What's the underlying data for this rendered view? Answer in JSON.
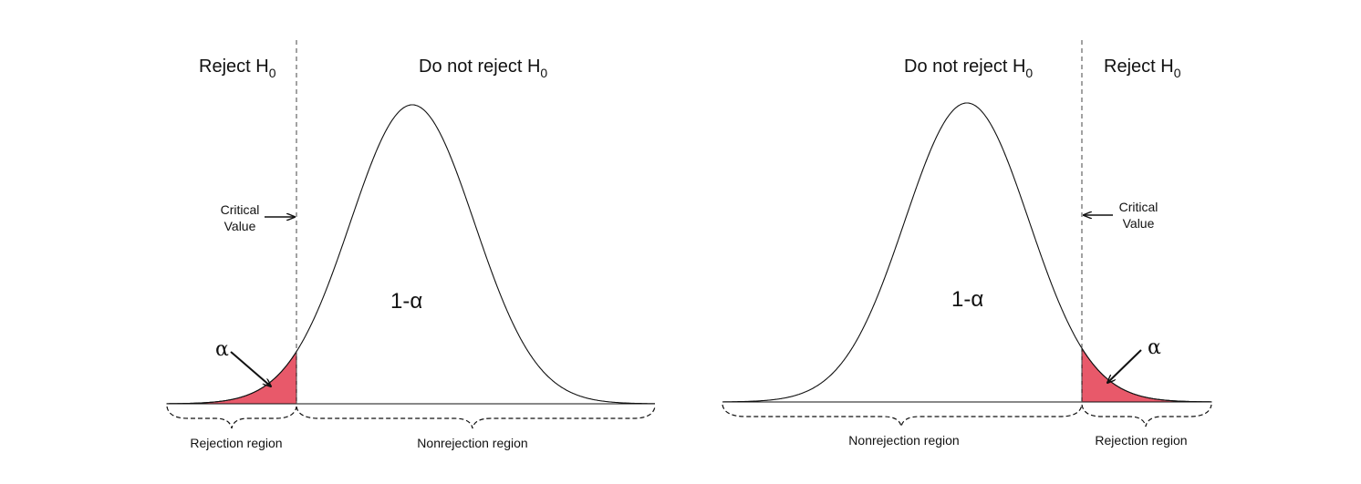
{
  "colors": {
    "rejection_fill": "#e8596a",
    "curve": "#111111"
  },
  "left_panel": {
    "tail": "left",
    "reject_label": "Reject H",
    "reject_sub": "0",
    "accept_label": "Do not reject H",
    "accept_sub": "0",
    "critical_line1": "Critical",
    "critical_line2": "Value",
    "center_label": "1-α",
    "alpha_label": "α",
    "rejection_region": "Rejection region",
    "nonrejection_region": "Nonrejection region"
  },
  "right_panel": {
    "tail": "right",
    "reject_label": "Reject H",
    "reject_sub": "0",
    "accept_label": "Do not reject H",
    "accept_sub": "0",
    "critical_line1": "Critical",
    "critical_line2": "Value",
    "center_label": "1-α",
    "alpha_label": "α",
    "rejection_region": "Rejection region",
    "nonrejection_region": "Nonrejection region"
  }
}
